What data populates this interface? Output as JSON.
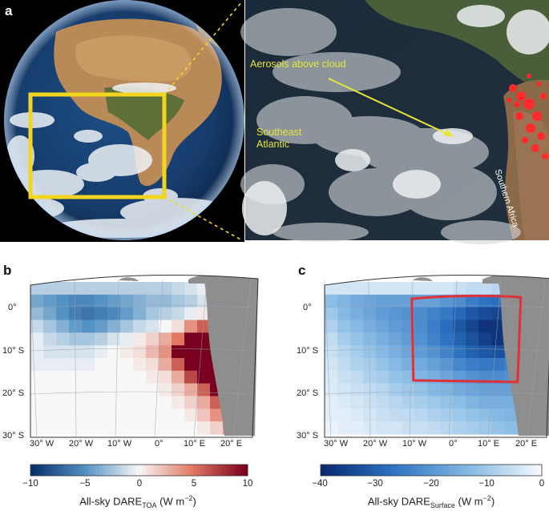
{
  "panels": {
    "a": {
      "label": "a"
    },
    "b": {
      "label": "b"
    },
    "c": {
      "label": "c"
    }
  },
  "photo": {
    "aerosol_label": "Aerosols above cloud",
    "southeast_atlantic_label": [
      "Southeast",
      "Atlantic"
    ],
    "southern_africa_label": "Southern Africa",
    "box_color": "#f2d51f",
    "arrow_color": "#e6e63a",
    "fire_color": "#ff2a2a"
  },
  "map_axes": {
    "lat_ticks": [
      "0°",
      "10° S",
      "20° S",
      "30° S"
    ],
    "lon_ticks": [
      "30° W",
      "20° W",
      "10° W",
      "0°",
      "10° E",
      "20° E"
    ]
  },
  "chart_data": [
    {
      "type": "heatmap",
      "panel": "b",
      "quantity": "All-sky DARE (TOA)",
      "colorbar_title_main": "All-sky DARE",
      "colorbar_title_sub": "TOA",
      "colorbar_units": " (W m",
      "colorbar_units_exp": "−2",
      "colorbar_units_end": ")",
      "colorbar_ticks": [
        "−10",
        "−5",
        "0",
        "5",
        "10"
      ],
      "vmin": -10,
      "vmax": 10,
      "colormap": "diverging blue-white-red",
      "lon_range": [
        -30,
        20
      ],
      "lat_range": [
        -30,
        5
      ],
      "grid": [
        [
          -2,
          -2,
          -2,
          -2,
          -2,
          -2,
          -2,
          -2,
          -2,
          -2,
          -2,
          -1.5,
          -1,
          -0.5,
          0,
          null,
          null
        ],
        [
          -4,
          -4.5,
          -5,
          -5.5,
          -5.5,
          -5,
          -4.5,
          -4,
          -3.5,
          -3,
          -3,
          -2.5,
          -2,
          -1,
          0.5,
          null,
          null
        ],
        [
          -3,
          -4,
          -5,
          -6,
          -6.5,
          -6,
          -5.5,
          -4.5,
          -3.5,
          -2.5,
          -2,
          -1.5,
          -0.5,
          0.5,
          2,
          4,
          null
        ],
        [
          -1.5,
          -2.5,
          -3.5,
          -4.5,
          -5,
          -4.5,
          -3.5,
          -2.5,
          -1.5,
          -1,
          0,
          1,
          4,
          6,
          8,
          10,
          null
        ],
        [
          -0.5,
          -1.5,
          -2,
          -2.5,
          -2.5,
          -2,
          -1,
          -0.5,
          0.5,
          1.5,
          3,
          5,
          10,
          10,
          10,
          10,
          null
        ],
        [
          -0.5,
          -1,
          -1,
          -1,
          -1,
          -0.5,
          0,
          0.5,
          1,
          2.5,
          4,
          10,
          10,
          10,
          10,
          10,
          null
        ],
        [
          -0.5,
          -0.5,
          -0.5,
          -0.5,
          -0.5,
          0,
          0,
          0,
          0.5,
          1,
          3,
          6,
          10,
          10,
          10,
          10,
          null
        ],
        [
          0,
          0,
          0,
          0,
          0,
          0,
          0,
          0,
          0,
          0.5,
          1,
          3,
          7,
          10,
          10,
          10,
          null
        ],
        [
          0,
          0,
          0,
          0,
          0,
          0,
          0,
          0,
          0,
          0,
          0.5,
          1.5,
          3,
          6,
          10,
          10,
          10
        ],
        [
          0,
          0,
          0,
          0,
          0,
          0,
          0,
          0,
          0,
          0,
          0,
          0.5,
          1.5,
          3,
          6,
          9,
          10
        ],
        [
          0,
          0,
          0,
          0,
          0,
          0,
          0,
          0,
          0,
          0,
          0,
          0,
          0.5,
          2,
          4,
          7,
          10
        ],
        [
          0,
          0,
          0,
          0,
          0,
          0,
          0,
          0,
          0,
          0,
          0,
          0,
          0,
          0.5,
          1.5,
          4,
          null
        ]
      ]
    },
    {
      "type": "heatmap",
      "panel": "c",
      "quantity": "All-sky DARE (Surface)",
      "colorbar_title_main": "All-sky DARE",
      "colorbar_title_sub": "Surface",
      "colorbar_units": " (W m",
      "colorbar_units_exp": "−2",
      "colorbar_units_end": ")",
      "colorbar_ticks": [
        "−40",
        "−30",
        "−20",
        "−10",
        "0"
      ],
      "vmin": -40,
      "vmax": 0,
      "colormap": "sequential blue",
      "highlight_box": {
        "lon": [
          -10,
          15
        ],
        "lat": [
          -18,
          1.5
        ],
        "color": "#e0313a"
      },
      "lon_range": [
        -30,
        20
      ],
      "lat_range": [
        -30,
        5
      ],
      "grid": [
        [
          -4,
          -4,
          -4,
          -4,
          -4,
          -4,
          -4,
          -4,
          -4,
          -4,
          -5,
          -6,
          -6,
          -7,
          -8,
          null,
          null
        ],
        [
          -12,
          -14,
          -16,
          -17,
          -18,
          -18,
          -18,
          -18,
          -18,
          -20,
          -22,
          -25,
          -27,
          -28,
          -22,
          null,
          null
        ],
        [
          -10,
          -13,
          -15,
          -17,
          -19,
          -20,
          -21,
          -22,
          -24,
          -26,
          -29,
          -32,
          -34,
          -35,
          -30,
          -20,
          null
        ],
        [
          -8,
          -11,
          -13,
          -15,
          -17,
          -19,
          -20,
          -22,
          -25,
          -28,
          -32,
          -35,
          -38,
          -38,
          -35,
          -26,
          null
        ],
        [
          -6,
          -9,
          -11,
          -13,
          -15,
          -17,
          -19,
          -21,
          -24,
          -27,
          -30,
          -33,
          -36,
          -38,
          -36,
          -28,
          null
        ],
        [
          -5,
          -7,
          -9,
          -11,
          -13,
          -15,
          -17,
          -19,
          -21,
          -24,
          -27,
          -30,
          -32,
          -33,
          -30,
          -24,
          null
        ],
        [
          -4,
          -6,
          -8,
          -9,
          -11,
          -13,
          -15,
          -16,
          -18,
          -20,
          -23,
          -25,
          -26,
          -26,
          -24,
          -20,
          null
        ],
        [
          -3,
          -5,
          -6,
          -8,
          -9,
          -11,
          -12,
          -14,
          -15,
          -17,
          -19,
          -21,
          -22,
          -22,
          -21,
          -18,
          null
        ],
        [
          -3,
          -4,
          -5,
          -6,
          -7,
          -9,
          -10,
          -11,
          -13,
          -14,
          -16,
          -17,
          -18,
          -18,
          -18,
          -17,
          -14
        ],
        [
          -2,
          -3,
          -4,
          -5,
          -6,
          -7,
          -8,
          -9,
          -10,
          -11,
          -12,
          -14,
          -15,
          -15,
          -15,
          -16,
          -14
        ],
        [
          -2,
          -2,
          -3,
          -4,
          -5,
          -6,
          -6,
          -7,
          -8,
          -9,
          -10,
          -11,
          -12,
          -13,
          -14,
          -15,
          -13
        ],
        [
          -1,
          -2,
          -2,
          -3,
          -4,
          -4,
          -5,
          -5,
          -6,
          -7,
          -8,
          -9,
          -10,
          -11,
          -12,
          -13,
          null
        ]
      ]
    }
  ]
}
